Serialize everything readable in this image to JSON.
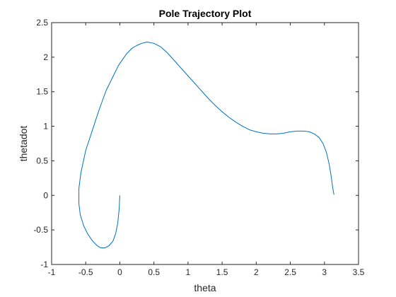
{
  "chart_data": {
    "type": "line",
    "title": "Pole Trajectory Plot",
    "xlabel": "theta",
    "ylabel": "thetadot",
    "xlim": [
      -1,
      3.5
    ],
    "ylim": [
      -1,
      2.5
    ],
    "xticks": [
      "-1",
      "-0.5",
      "0",
      "0.5",
      "1",
      "1.5",
      "2",
      "2.5",
      "3",
      "3.5"
    ],
    "yticks": [
      "-1",
      "-0.5",
      "0",
      "0.5",
      "1",
      "1.5",
      "2",
      "2.5"
    ],
    "grid": false,
    "line_color": "#0072BD",
    "series": [
      {
        "x": [
          0.0,
          -0.01,
          -0.03,
          -0.06,
          -0.1,
          -0.16,
          -0.22,
          -0.28,
          -0.33,
          -0.4,
          -0.47,
          -0.53,
          -0.58,
          -0.6,
          -0.6,
          -0.57,
          -0.5,
          -0.4,
          -0.3,
          -0.2,
          -0.1,
          -0.02,
          0.05,
          0.1,
          0.18,
          0.25,
          0.32,
          0.4,
          0.5,
          0.6,
          0.7,
          0.8,
          0.9,
          1.0,
          1.1,
          1.2,
          1.3,
          1.4,
          1.5,
          1.6,
          1.7,
          1.8,
          1.9,
          2.0,
          2.1,
          2.2,
          2.3,
          2.4,
          2.5,
          2.6,
          2.7,
          2.78,
          2.85,
          2.92,
          2.98,
          3.03,
          3.07,
          3.1,
          3.12,
          3.14
        ],
        "y": [
          0.0,
          -0.2,
          -0.4,
          -0.55,
          -0.66,
          -0.73,
          -0.76,
          -0.76,
          -0.73,
          -0.66,
          -0.56,
          -0.44,
          -0.28,
          -0.12,
          0.1,
          0.33,
          0.65,
          0.95,
          1.25,
          1.52,
          1.72,
          1.88,
          1.98,
          2.05,
          2.13,
          2.17,
          2.2,
          2.22,
          2.2,
          2.15,
          2.06,
          1.95,
          1.84,
          1.73,
          1.62,
          1.51,
          1.4,
          1.3,
          1.21,
          1.13,
          1.06,
          1.0,
          0.95,
          0.92,
          0.9,
          0.89,
          0.89,
          0.9,
          0.92,
          0.93,
          0.93,
          0.92,
          0.89,
          0.84,
          0.75,
          0.62,
          0.45,
          0.27,
          0.12,
          0.01
        ]
      }
    ]
  }
}
